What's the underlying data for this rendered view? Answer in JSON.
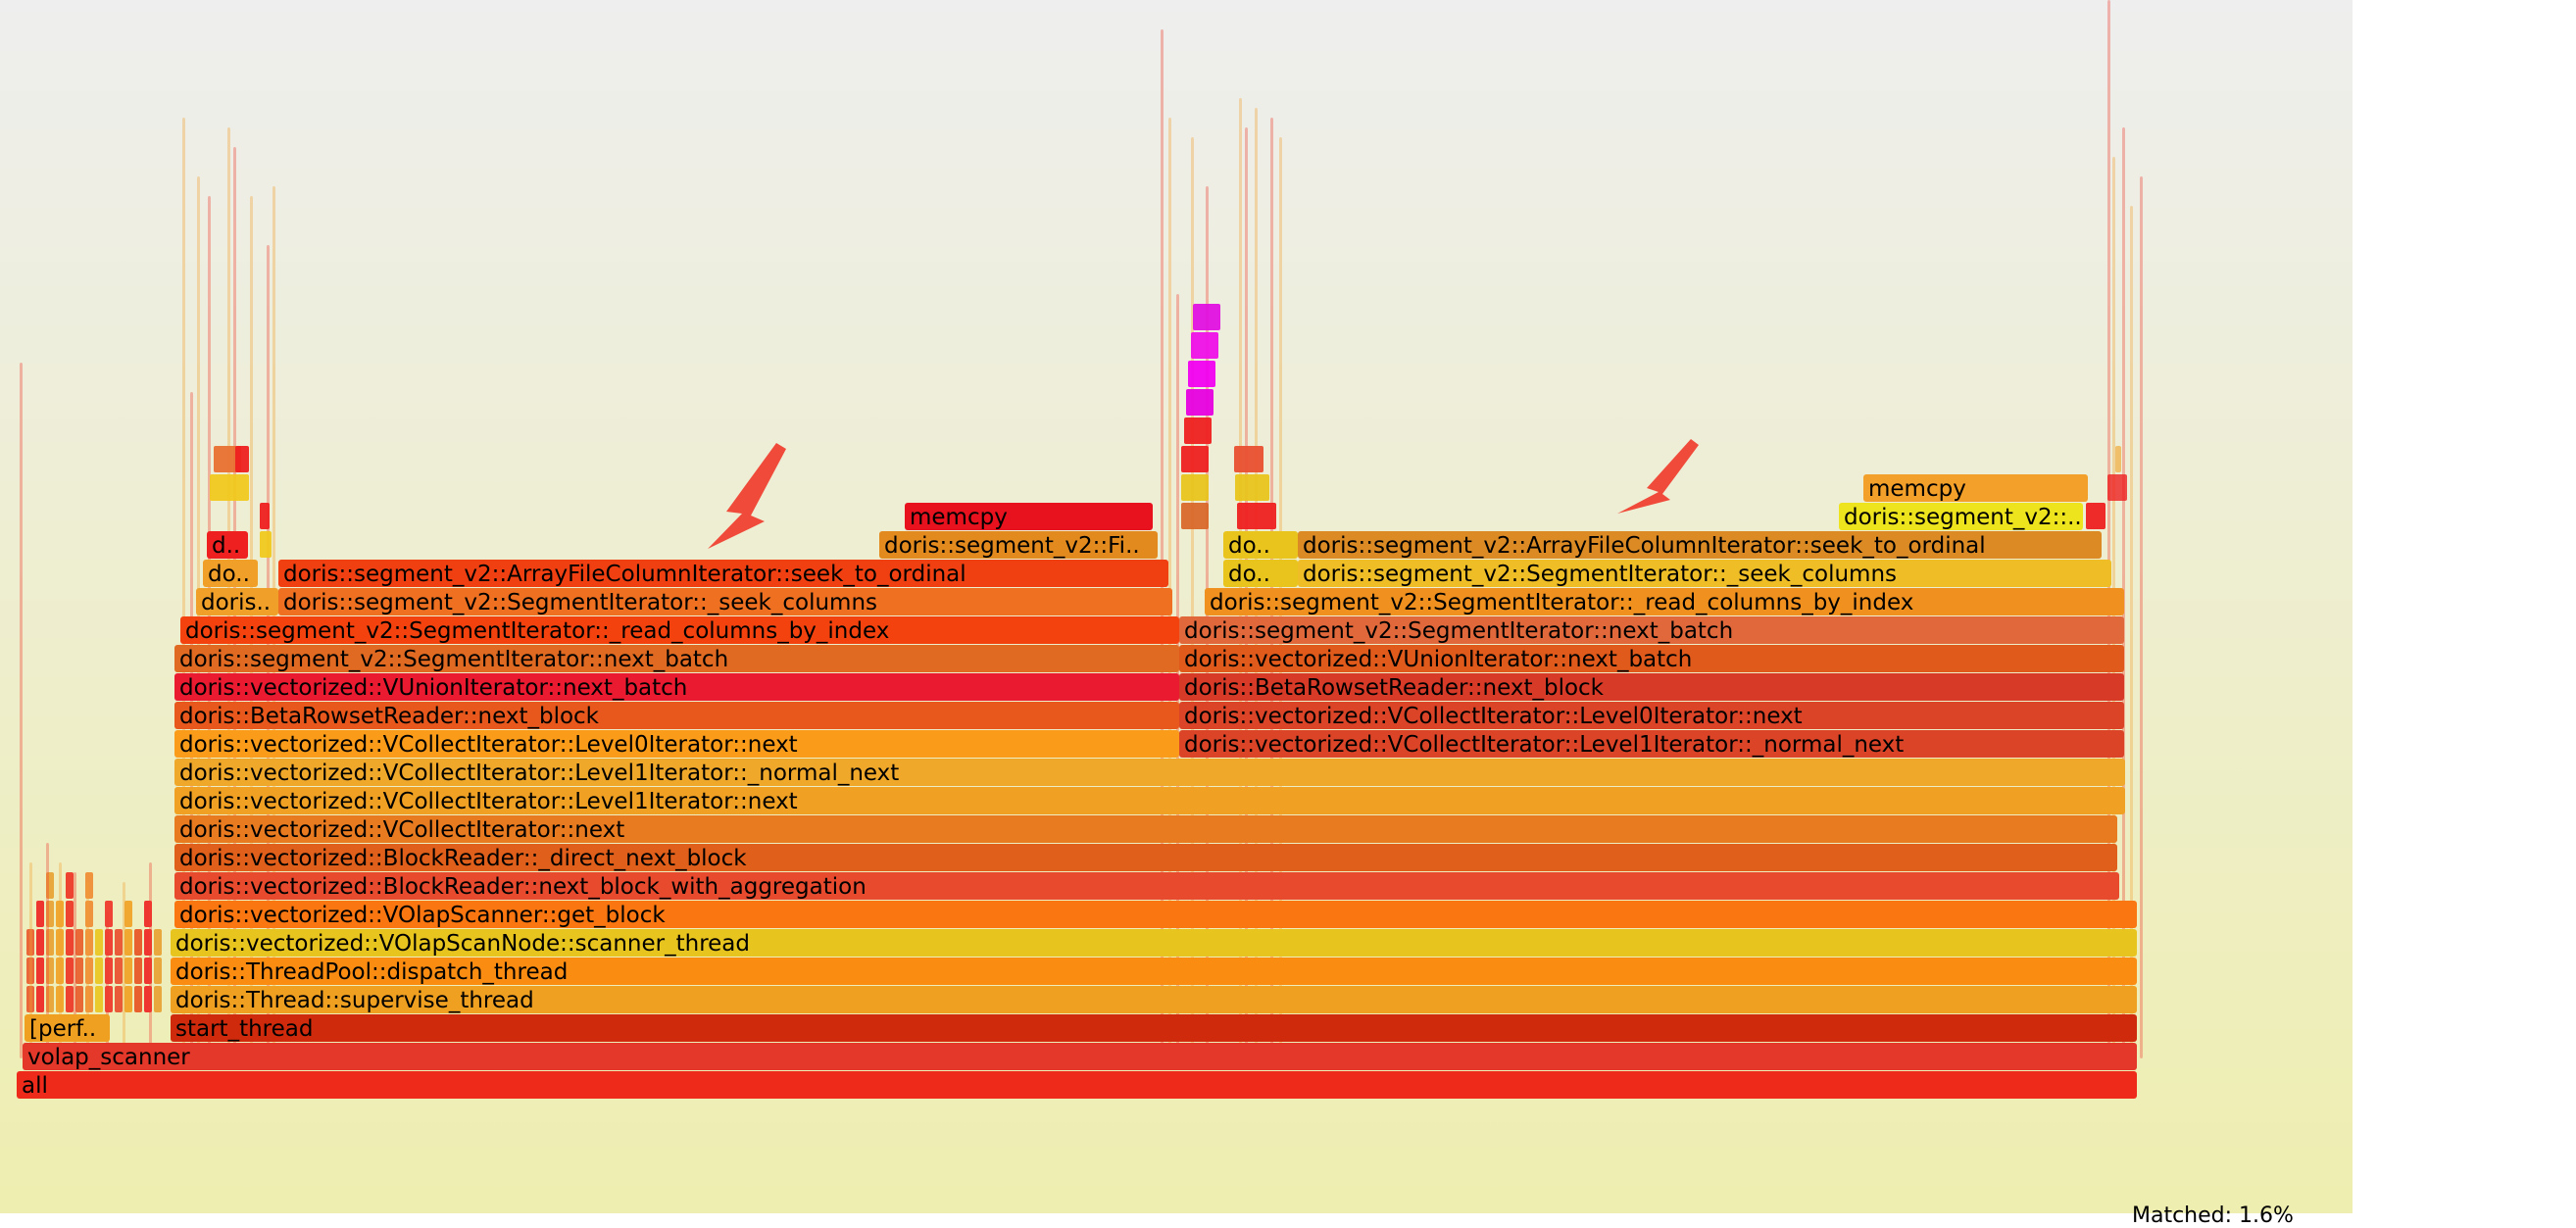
{
  "colors": {
    "background_top": "#eeeeee",
    "background_bottom": "#eeeeb0",
    "arrow": "#f04a3a"
  },
  "footer": {
    "matched": "Matched: 1.6%"
  },
  "frames": [
    {
      "id": "all",
      "label": "all",
      "color": "#ee2a1a"
    },
    {
      "id": "volap",
      "label": "volap_scanner",
      "color": "#e3382a"
    },
    {
      "id": "start",
      "label": "start_thread",
      "color": "#cf2a0c"
    },
    {
      "id": "perf",
      "label": "[perf..",
      "color": "#f0a020"
    },
    {
      "id": "supervise",
      "label": "doris::Thread::supervise_thread",
      "color": "#f0a020"
    },
    {
      "id": "dispatch",
      "label": "doris::ThreadPool::dispatch_thread",
      "color": "#fa8c12"
    },
    {
      "id": "scanner_thread",
      "label": "doris::vectorized::VOlapScanNode::scanner_thread",
      "color": "#e8c41e"
    },
    {
      "id": "get_block",
      "label": "doris::vectorized::VOlapScanner::get_block",
      "color": "#fa7610"
    },
    {
      "id": "bnbwa",
      "label": "doris::vectorized::BlockReader::next_block_with_aggregation",
      "color": "#e84a2e"
    },
    {
      "id": "dnb",
      "label": "doris::vectorized::BlockReader::_direct_next_block",
      "color": "#e05f1a"
    },
    {
      "id": "vci_next",
      "label": "doris::vectorized::VCollectIterator::next",
      "color": "#e87a20"
    },
    {
      "id": "l1_next",
      "label": "doris::vectorized::VCollectIterator::Level1Iterator::next",
      "color": "#f0a022"
    },
    {
      "id": "l1_normal",
      "label": "doris::vectorized::VCollectIterator::Level1Iterator::_normal_next",
      "color": "#f0a82a"
    },
    {
      "id": "l0_left",
      "label": "doris::vectorized::VCollectIterator::Level0Iterator::next",
      "color": "#fa9c1a"
    },
    {
      "id": "l1n_right",
      "label": "doris::vectorized::VCollectIterator::Level1Iterator::_normal_next",
      "color": "#dc4428"
    },
    {
      "id": "brr_left",
      "label": "doris::BetaRowsetReader::next_block",
      "color": "#e8581c"
    },
    {
      "id": "l0_right",
      "label": "doris::vectorized::VCollectIterator::Level0Iterator::next",
      "color": "#dc4428"
    },
    {
      "id": "vui_left",
      "label": "doris::vectorized::VUnionIterator::next_batch",
      "color": "#ea1a30"
    },
    {
      "id": "brr_right",
      "label": "doris::BetaRowsetReader::next_block",
      "color": "#d83a28"
    },
    {
      "id": "sinb_left",
      "label": "doris::segment_v2::SegmentIterator::next_batch",
      "color": "#e06a22"
    },
    {
      "id": "vui_right",
      "label": "doris::vectorized::VUnionIterator::next_batch",
      "color": "#e05a1c"
    },
    {
      "id": "rcbi_left",
      "label": "doris::segment_v2::SegmentIterator::_read_columns_by_index",
      "color": "#f4420e"
    },
    {
      "id": "sinb_right",
      "label": "doris::segment_v2::SegmentIterator::next_batch",
      "color": "#e0683a"
    },
    {
      "id": "dots1",
      "label": "doris..",
      "color": "#f0a028"
    },
    {
      "id": "seek_cols_left",
      "label": "doris::segment_v2::SegmentIterator::_seek_columns",
      "color": "#ee7020"
    },
    {
      "id": "rcbi_right",
      "label": "doris::segment_v2::SegmentIterator::_read_columns_by_index",
      "color": "#f0901e"
    },
    {
      "id": "do2",
      "label": "do..",
      "color": "#f0a028"
    },
    {
      "id": "afci_left",
      "label": "doris::segment_v2::ArrayFileColumnIterator::seek_to_ordinal",
      "color": "#f04012"
    },
    {
      "id": "do3",
      "label": "do..",
      "color": "#e8c41c"
    },
    {
      "id": "seek_cols_right",
      "label": "doris::segment_v2::SegmentIterator::_seek_columns",
      "color": "#efbe26"
    },
    {
      "id": "d_small",
      "label": "d..",
      "color": "#ee2020"
    },
    {
      "id": "fi_left",
      "label": "doris::segment_v2::Fi..",
      "color": "#e38a1e"
    },
    {
      "id": "do4",
      "label": "do..",
      "color": "#e8c41c"
    },
    {
      "id": "afci_right",
      "label": "doris::segment_v2::ArrayFileColumnIterator::seek_to_ordinal",
      "color": "#dc8a24"
    },
    {
      "id": "memcpy_left",
      "label": "memcpy",
      "color": "#e8121e"
    },
    {
      "id": "sv2_right",
      "label": "doris::segment_v2::..",
      "color": "#eee41e"
    },
    {
      "id": "memcpy_right",
      "label": "memcpy",
      "color": "#f3a02a"
    }
  ]
}
